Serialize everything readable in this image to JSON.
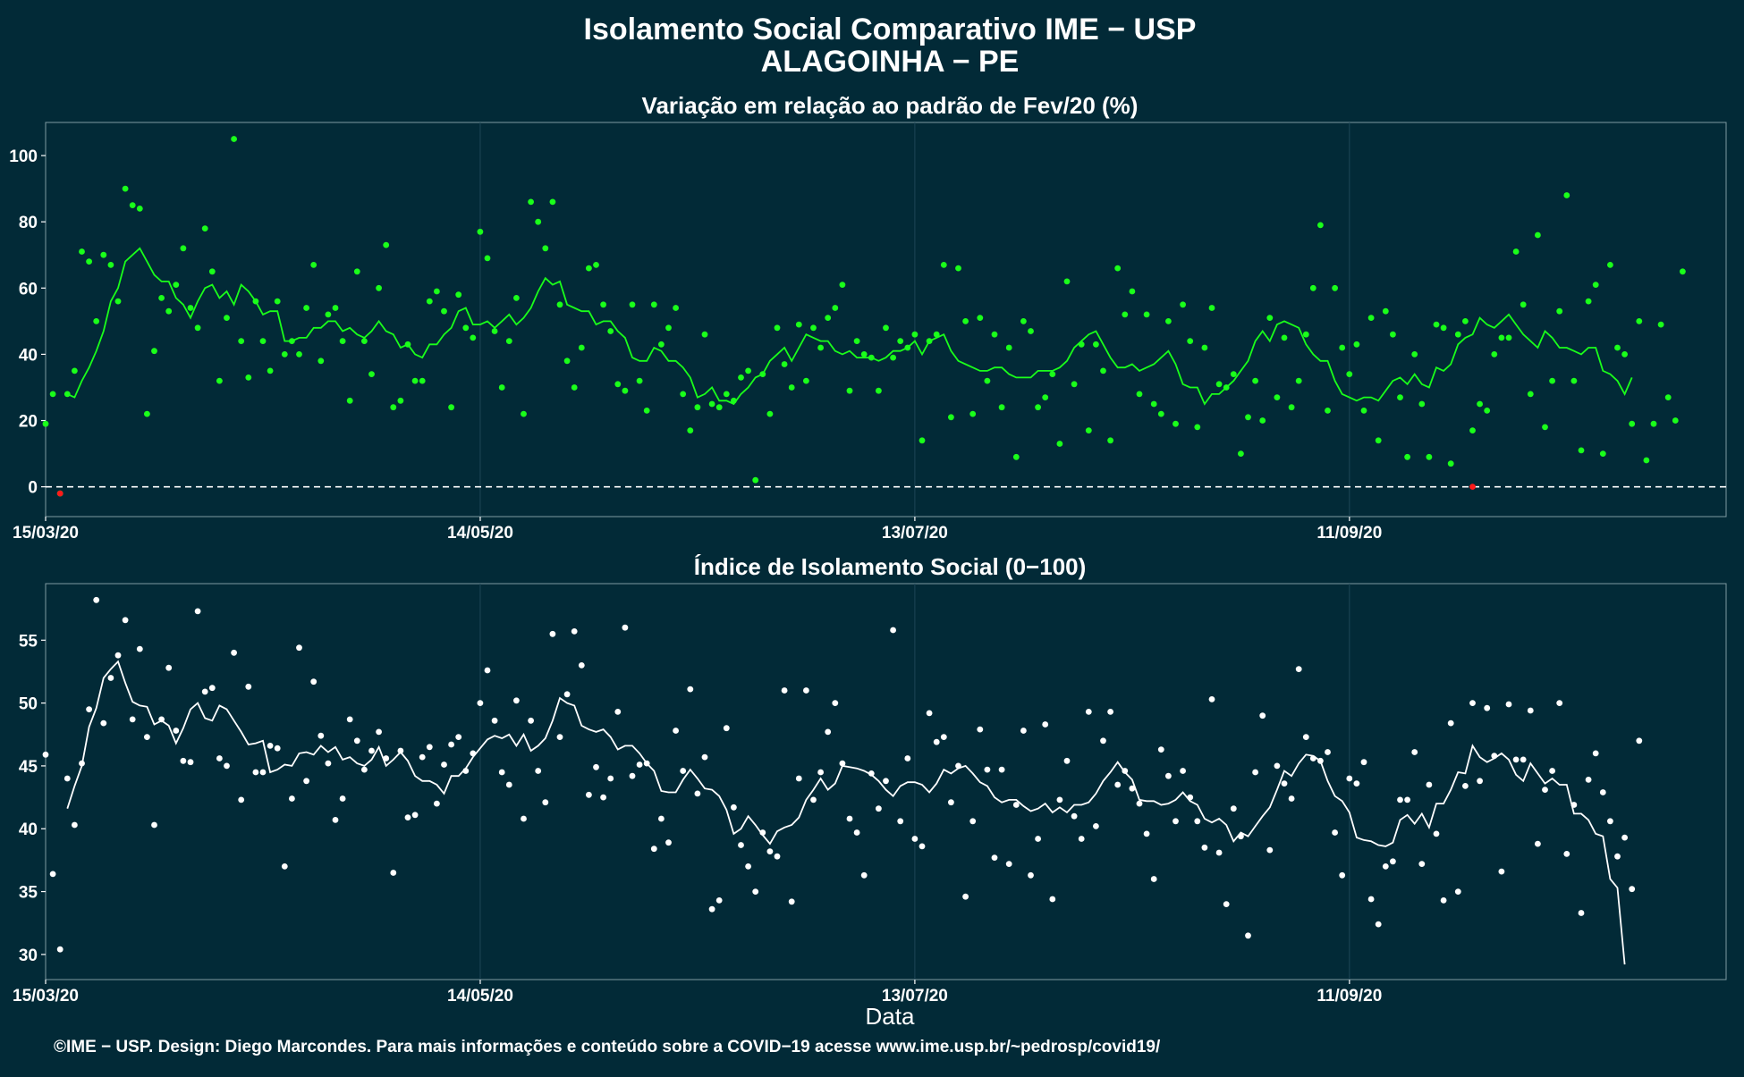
{
  "figure": {
    "title_line1": "Isolamento Social Comparativo IME − USP",
    "title_line2": "ALAGOINHA − PE",
    "xlabel": "Data",
    "caption": "©IME − USP. Design: Diego Marcondes. Para mais informações e conteúdo sobre a COVID−19 acesse www.ime.usp.br/~pedrosp/covid19/"
  },
  "colors": {
    "background": "#022a37",
    "green": "#1aff1a",
    "red": "#ff1a1a",
    "white": "#ffffff"
  },
  "chart_data": [
    {
      "type": "scatter",
      "title": "Variação em relação ao padrão de Fev/20 (%)",
      "xlabel": "",
      "ylabel": "",
      "x_start": "2020-03-15",
      "x_end": "2020-11-02",
      "xlim": [
        "2020-03-15",
        "2020-11-02"
      ],
      "ylim": [
        -9,
        110
      ],
      "yticks": [
        0,
        20,
        40,
        60,
        80,
        100
      ],
      "xticks": [
        {
          "date": "2020-03-15",
          "label": "15/03/20"
        },
        {
          "date": "2020-05-14",
          "label": "14/05/20"
        },
        {
          "date": "2020-07-13",
          "label": "13/07/20"
        },
        {
          "date": "2020-09-11",
          "label": "11/09/20"
        }
      ],
      "reference_line": 0,
      "grid": "vertical only",
      "series": [
        {
          "kind": "points",
          "color": "#1aff1a",
          "values": [
            19,
            28,
            -2,
            28,
            35,
            71,
            68,
            50,
            70,
            67,
            56,
            90,
            85,
            84,
            22,
            41,
            57,
            53,
            61,
            72,
            54,
            48,
            78,
            65,
            32,
            51,
            105,
            44,
            33,
            56,
            44,
            35,
            56,
            40,
            44,
            40,
            54,
            67,
            38,
            52,
            54,
            44,
            26,
            65,
            44,
            34,
            60,
            73,
            24,
            26,
            43,
            32,
            32,
            56,
            59,
            53,
            24,
            58,
            48,
            45,
            77,
            69,
            47,
            30,
            44,
            57,
            22,
            86,
            80,
            72,
            86,
            55,
            38,
            30,
            42,
            66,
            67,
            55,
            47,
            31,
            29,
            55,
            32,
            23,
            55,
            43,
            48,
            54,
            28,
            17,
            24,
            46,
            25,
            24,
            28,
            26,
            33,
            35,
            2,
            34,
            22,
            48,
            37,
            30,
            49,
            32,
            48,
            42,
            51,
            54,
            61,
            29,
            44,
            40,
            39,
            29,
            48,
            39,
            44,
            42,
            46,
            14,
            44,
            46,
            67,
            21,
            66,
            50,
            22,
            51,
            32,
            46,
            24,
            42,
            9,
            50,
            47,
            24,
            27,
            34,
            13,
            62,
            31,
            43,
            17,
            43,
            35,
            14,
            66,
            52,
            59,
            28,
            52,
            25,
            22,
            50,
            19,
            55,
            44,
            18,
            42,
            54,
            31,
            30,
            34,
            10,
            21,
            32,
            20,
            51,
            27,
            45,
            24,
            32,
            46,
            60,
            79,
            23,
            60,
            42,
            34,
            43,
            23,
            51,
            14,
            53,
            46,
            27,
            9,
            40,
            25,
            9,
            49,
            48,
            7,
            46,
            50,
            17,
            25,
            23,
            40,
            45,
            45,
            71,
            55,
            28,
            76,
            18,
            32,
            53,
            88,
            32,
            11,
            56,
            61,
            10,
            67,
            42,
            40,
            19,
            50,
            8,
            19,
            49,
            27,
            20,
            65
          ]
        },
        {
          "kind": "points_below_zero_or_reference",
          "color": "#ff1a1a",
          "points": [
            {
              "date": "2020-03-17",
              "value": -2
            },
            {
              "date": "2020-09-28",
              "value": 0
            }
          ]
        },
        {
          "kind": "moving_average_line",
          "color": "#1aff1a",
          "values": [
            28,
            27,
            32,
            36,
            41,
            47,
            56,
            60,
            68,
            70,
            72,
            68,
            64,
            62,
            62,
            57,
            55,
            51,
            56,
            60,
            61,
            57,
            59,
            55,
            61,
            59,
            56,
            52,
            53,
            53,
            44,
            44,
            45,
            45,
            48,
            48,
            50,
            50,
            47,
            48,
            46,
            45,
            47,
            50,
            47,
            46,
            42,
            43,
            40,
            39,
            43,
            43,
            46,
            48,
            53,
            54,
            49,
            49,
            50,
            48,
            50,
            52,
            49,
            51,
            54,
            59,
            63,
            61,
            62,
            55,
            54,
            53,
            53,
            49,
            50,
            50,
            47,
            45,
            39,
            38,
            38,
            42,
            41,
            38,
            38,
            36,
            33,
            27,
            28,
            30,
            26,
            26,
            25,
            28,
            30,
            33,
            34,
            38,
            40,
            42,
            38,
            42,
            46,
            45,
            44,
            44,
            41,
            40,
            41,
            39,
            39,
            39,
            38,
            39,
            41,
            41,
            42,
            44,
            40,
            44,
            45,
            46,
            41,
            38,
            37,
            36,
            35,
            35,
            36,
            36,
            34,
            33,
            33,
            33,
            35,
            35,
            35,
            36,
            38,
            42,
            44,
            46,
            47,
            43,
            39,
            36,
            36,
            37,
            35,
            36,
            37,
            39,
            41,
            37,
            31,
            30,
            30,
            25,
            28,
            28,
            30,
            32,
            35,
            38,
            44,
            47,
            44,
            49,
            50,
            49,
            48,
            43,
            40,
            38,
            38,
            32,
            28,
            27,
            26,
            27,
            27,
            26,
            29,
            32,
            33,
            31,
            34,
            31,
            30,
            36,
            35,
            37,
            43,
            45,
            46,
            51,
            49,
            48,
            50,
            52,
            49,
            46,
            44,
            42,
            47,
            45,
            42,
            42,
            41,
            40,
            42,
            42,
            35,
            34,
            32,
            28,
            33
          ]
        }
      ]
    },
    {
      "type": "scatter",
      "title": "Índice de Isolamento Social (0−100)",
      "xlabel": "Data",
      "ylabel": "",
      "x_start": "2020-03-15",
      "x_end": "2020-11-02",
      "xlim": [
        "2020-03-15",
        "2020-11-02"
      ],
      "ylim": [
        28,
        59.5
      ],
      "yticks": [
        30,
        35,
        40,
        45,
        50,
        55
      ],
      "xticks": [
        {
          "date": "2020-03-15",
          "label": "15/03/20"
        },
        {
          "date": "2020-05-14",
          "label": "14/05/20"
        },
        {
          "date": "2020-07-13",
          "label": "13/07/20"
        },
        {
          "date": "2020-09-11",
          "label": "11/09/20"
        }
      ],
      "grid": "vertical only",
      "series": [
        {
          "kind": "points",
          "color": "#ffffff",
          "values": [
            45.9,
            36.4,
            30.4,
            44,
            40.3,
            45.2,
            49.5,
            58.2,
            48.4,
            52,
            53.8,
            56.6,
            48.7,
            54.3,
            47.3,
            40.3,
            48.7,
            52.8,
            47.8,
            45.4,
            45.3,
            57.3,
            50.9,
            51.2,
            45.6,
            45,
            54,
            42.3,
            51.3,
            44.5,
            44.5,
            46.6,
            46.4,
            37,
            42.4,
            54.4,
            43.8,
            51.7,
            47.4,
            45.2,
            40.7,
            42.4,
            48.7,
            47,
            44.7,
            46.2,
            47.7,
            45.6,
            36.5,
            46.2,
            40.9,
            41.1,
            45.7,
            46.5,
            42,
            45.1,
            46.7,
            47.3,
            44.6,
            46,
            50,
            52.6,
            48.6,
            44.5,
            43.5,
            50.2,
            40.8,
            48.6,
            44.6,
            42.1,
            55.5,
            47.3,
            50.7,
            55.7,
            53,
            42.7,
            44.9,
            42.5,
            44,
            49.3,
            56,
            44.2,
            45.1,
            45.2,
            38.4,
            40.8,
            38.9,
            47.8,
            44.6,
            51.1,
            42.8,
            45.7,
            33.6,
            34.3,
            48,
            41.7,
            38.7,
            37,
            35,
            39.7,
            38.2,
            37.8,
            51,
            34.2,
            44,
            51,
            42.3,
            44.5,
            47.7,
            50,
            45.2,
            40.8,
            39.7,
            36.3,
            44.4,
            41.6,
            43.8,
            55.8,
            40.6,
            45.6,
            39.2,
            38.6,
            49.2,
            46.9,
            47.3,
            42.1,
            45,
            34.6,
            40.6,
            47.9,
            44.7,
            37.7,
            44.7,
            37.2,
            41.9,
            47.8,
            36.3,
            39.2,
            48.3,
            34.4,
            42.3,
            45.4,
            41,
            39.2,
            49.3,
            40.2,
            47,
            49.3,
            43.5,
            44.6,
            43.2,
            42,
            39.6,
            36,
            46.3,
            44.2,
            40.6,
            44.6,
            42.5,
            40.6,
            38.5,
            50.3,
            38.1,
            34,
            41.6,
            39.4,
            31.5,
            44.5,
            49,
            38.3,
            45,
            43.6,
            42.4,
            52.7,
            47.3,
            45.6,
            45.4,
            46.1,
            39.7,
            36.3,
            44,
            43.6,
            45.3,
            34.4,
            32.4,
            37,
            37.4,
            42.3,
            42.3,
            46.1,
            37.2,
            43.5,
            39.6,
            34.3,
            48.4,
            35,
            43.4,
            50,
            43.8,
            49.6,
            45.8,
            36.6,
            49.9,
            45.5,
            45.5,
            49.4,
            38.8,
            43.1,
            44.6,
            50,
            38,
            41.9,
            33.3,
            43.9,
            46,
            42.9,
            40.6,
            37.8,
            39.3,
            35.2,
            47
          ]
        },
        {
          "kind": "moving_average_line",
          "color": "#ffffff",
          "values": [
            41.6,
            43.4,
            45,
            48.1,
            49.6,
            52,
            52.7,
            53.3,
            51.6,
            50.1,
            49.8,
            49.7,
            48.3,
            48.6,
            48.2,
            46.8,
            48,
            49.5,
            50,
            48.8,
            48.6,
            49.8,
            49.5,
            48.6,
            47.7,
            46.7,
            46.8,
            47,
            44.5,
            44.7,
            45.1,
            45,
            46,
            46.1,
            45.9,
            46.6,
            46.1,
            46.5,
            45.5,
            45.7,
            45.2,
            45,
            45.5,
            46.5,
            45,
            45.5,
            46.1,
            45.4,
            44.2,
            43.8,
            43.8,
            43.5,
            42.8,
            44.2,
            44.2,
            44.8,
            45.7,
            46.4,
            47.1,
            47.4,
            47.2,
            47.5,
            46.6,
            47.5,
            46.2,
            46.6,
            47.2,
            48.6,
            50.4,
            50,
            49.8,
            48.2,
            47.9,
            47.7,
            47.9,
            47.3,
            46.3,
            46.6,
            46.6,
            46,
            45.2,
            44.6,
            43,
            42.9,
            42.9,
            43.9,
            44.7,
            44,
            43.2,
            43.1,
            42.6,
            41.5,
            39.6,
            40,
            41,
            40.3,
            39.5,
            38.8,
            39.8,
            40.1,
            40.3,
            40.9,
            42.3,
            43.1,
            44,
            43.1,
            43.6,
            45,
            44.9,
            44.8,
            44.6,
            44.3,
            43.8,
            43.1,
            42.6,
            43.4,
            43.7,
            43.7,
            43.5,
            42.9,
            43.6,
            44.7,
            44.4,
            44.8,
            45,
            44.4,
            43.7,
            43.4,
            42.5,
            42.1,
            42.3,
            42.3,
            41.8,
            41.4,
            41.6,
            42,
            41.3,
            41.7,
            41.3,
            41.9,
            41.9,
            42.1,
            42.8,
            43.8,
            44.5,
            45.3,
            44.5,
            43.9,
            42.3,
            42.2,
            42.2,
            41.9,
            42,
            42.3,
            42.9,
            42.2,
            41.9,
            40.8,
            40.5,
            40.8,
            40.3,
            39,
            39.7,
            39.4,
            40.2,
            41,
            41.7,
            43.1,
            44.6,
            44.2,
            45.2,
            45.9,
            45.8,
            45.4,
            43.8,
            42.6,
            42.2,
            41.3,
            39.3,
            39.1,
            39,
            38.7,
            38.6,
            38.9,
            40.7,
            41.1,
            40.4,
            41.2,
            40.1,
            42,
            42,
            43.1,
            44.5,
            44.4,
            46.6,
            45.7,
            45.3,
            45.6,
            46,
            45.5,
            44.3,
            43.8,
            45.2,
            44.4,
            43.6,
            44,
            43.5,
            43.5,
            41.2,
            41.2,
            40.7,
            39.6,
            39.4,
            36,
            35.3,
            29.2
          ]
        }
      ]
    }
  ]
}
